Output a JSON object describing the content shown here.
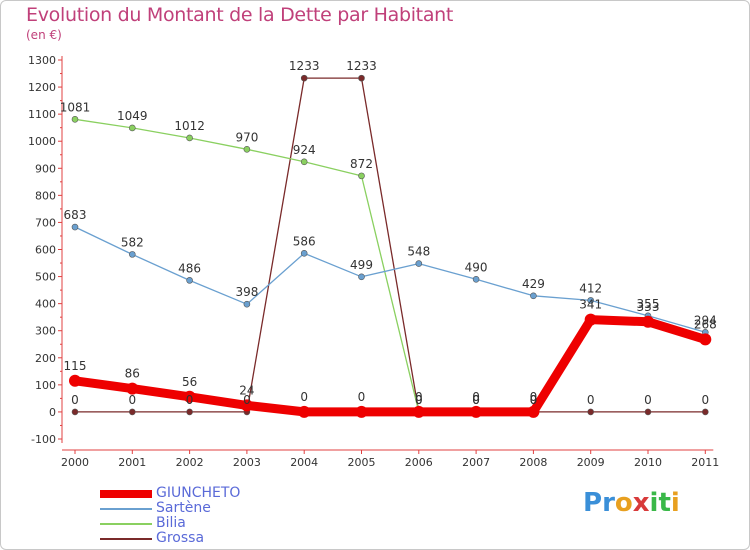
{
  "header": {
    "title": "Evolution du Montant de la Dette par Habitant",
    "subtitle": "(en €)"
  },
  "logo": {
    "letters": [
      "P",
      "r",
      "o",
      "x",
      "i",
      "t",
      "i"
    ],
    "colors": [
      "#3a8fd8",
      "#3a8fd8",
      "#e8a020",
      "#d83a3a",
      "#3ab848",
      "#3ab848",
      "#e8a020"
    ]
  },
  "chart_data": {
    "type": "line",
    "title": "Evolution du Montant de la Dette par Habitant",
    "subtitle": "(en €)",
    "x": [
      "2000",
      "2001",
      "2002",
      "2003",
      "2004",
      "2005",
      "2006",
      "2007",
      "2008",
      "2009",
      "2010",
      "2011"
    ],
    "ylim": [
      -100,
      1300
    ],
    "yticks": [
      -100,
      0,
      100,
      200,
      300,
      400,
      500,
      600,
      700,
      800,
      900,
      1000,
      1100,
      1200,
      1300
    ],
    "grid": false,
    "legend": "bottom-left",
    "series": [
      {
        "name": "GIUNCHETO",
        "color": "#ee0000",
        "values": [
          115,
          86,
          56,
          24,
          0,
          0,
          0,
          0,
          0,
          341,
          333,
          268
        ],
        "labels": [
          "115",
          "86",
          "56",
          "24",
          "0",
          "0",
          "0",
          "0",
          "0",
          "341",
          "333",
          "268"
        ]
      },
      {
        "name": "Sartène",
        "color": "#6aa0d0",
        "values": [
          683,
          582,
          486,
          398,
          586,
          499,
          548,
          490,
          429,
          412,
          355,
          294
        ],
        "labels": [
          "683",
          "582",
          "486",
          "398",
          "586",
          "499",
          "548",
          "490",
          "429",
          "412",
          "355",
          "294"
        ]
      },
      {
        "name": "Bilia",
        "color": "#8ad060",
        "values": [
          1081,
          1049,
          1012,
          970,
          924,
          872,
          0,
          0,
          0,
          null,
          null,
          null
        ],
        "labels": [
          "1081",
          "1049",
          "1012",
          "970",
          "924",
          "872",
          "0",
          "0",
          "0",
          "",
          "",
          ""
        ]
      },
      {
        "name": "Grossa",
        "color": "#7a2a2a",
        "values": [
          0,
          0,
          0,
          0,
          1233,
          1233,
          0,
          0,
          0,
          0,
          0,
          0
        ],
        "labels": [
          "0",
          "0",
          "0",
          "0",
          "1233",
          "1233",
          "0",
          "0",
          "0",
          "0",
          "0",
          "0"
        ]
      }
    ]
  }
}
